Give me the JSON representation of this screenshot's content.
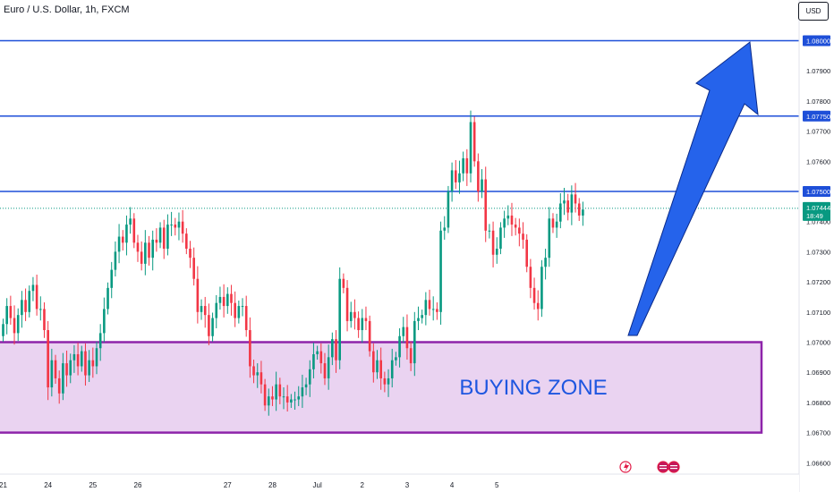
{
  "header": {
    "title": "Euro / U.S. Dollar, 1h, FXCM"
  },
  "currency_button": "USD",
  "zone_label": "BUYING ZONE",
  "colors": {
    "up": "#089981",
    "down": "#f23645",
    "level": "#1e4fd8",
    "zone_fill": "#ead3f1",
    "zone_border": "#8e24aa",
    "arrow": "#2563eb",
    "last_price": "#089981",
    "axis_text": "#131722"
  },
  "icons": [
    "lightning-icon",
    "us-flag-icon",
    "us-flag-icon"
  ],
  "chart_data": {
    "type": "candlestick",
    "title": "Euro / U.S. Dollar, 1h, FXCM",
    "x_tick_labels": [
      "21",
      "24",
      "25",
      "26",
      "27",
      "28",
      "Jul",
      "2",
      "3",
      "4",
      "5"
    ],
    "y_tick_labels": [
      "1.06600",
      "1.06700",
      "1.06800",
      "1.06900",
      "1.07000",
      "1.07100",
      "1.07200",
      "1.07300",
      "1.07400",
      "1.07500",
      "1.07600",
      "1.07700",
      "1.07800",
      "1.07900",
      "1.08000"
    ],
    "ylim": [
      1.0657,
      1.0812
    ],
    "levels": [
      {
        "label": "1.08000",
        "price": 1.08
      },
      {
        "label": "1.07750",
        "price": 1.0775
      },
      {
        "label": "1.07500",
        "price": 1.075
      }
    ],
    "last_price": {
      "label": "1.07444",
      "price": 1.07444,
      "countdown": "18:49"
    },
    "zone": {
      "label": "BUYING ZONE",
      "from_price": 1.067,
      "to_price": 1.07
    },
    "closes": [
      1.0706,
      1.0712,
      1.0708,
      1.0703,
      1.0709,
      1.0714,
      1.071,
      1.0717,
      1.0719,
      1.0711,
      1.0711,
      1.0704,
      1.0685,
      1.0694,
      1.0688,
      1.0683,
      1.0693,
      1.0689,
      1.0694,
      1.0696,
      1.0692,
      1.0697,
      1.0689,
      1.0694,
      1.0692,
      1.0698,
      1.0703,
      1.0711,
      1.0718,
      1.0724,
      1.073,
      1.0735,
      1.0733,
      1.0739,
      1.0741,
      1.0733,
      1.073,
      1.0726,
      1.0733,
      1.0728,
      1.0734,
      1.0733,
      1.0738,
      1.0731,
      1.0739,
      1.0739,
      1.0738,
      1.074,
      1.0736,
      1.0731,
      1.0728,
      1.0721,
      1.071,
      1.0712,
      1.0709,
      1.0702,
      1.0708,
      1.0713,
      1.0715,
      1.0712,
      1.0716,
      1.0713,
      1.0708,
      1.0712,
      1.0712,
      1.0704,
      1.0692,
      1.0689,
      1.069,
      1.0686,
      1.0679,
      1.0682,
      1.0681,
      1.0686,
      1.0682,
      1.0682,
      1.068,
      1.0681,
      1.0681,
      1.0682,
      1.0685,
      1.0686,
      1.0691,
      1.0696,
      1.0697,
      1.0693,
      1.0688,
      1.0695,
      1.0701,
      1.0694,
      1.0721,
      1.0718,
      1.0707,
      1.071,
      1.0708,
      1.0704,
      1.0708,
      1.0707,
      1.0697,
      1.069,
      1.0694,
      1.0688,
      1.0686,
      1.0688,
      1.0694,
      1.0695,
      1.0702,
      1.0705,
      1.0698,
      1.0693,
      1.0707,
      1.0708,
      1.0709,
      1.0714,
      1.0711,
      1.0711,
      1.071,
      1.0737,
      1.0738,
      1.075,
      1.0757,
      1.0753,
      1.0756,
      1.0761,
      1.0756,
      1.0773,
      1.076,
      1.075,
      1.0754,
      1.0737,
      1.0737,
      1.0729,
      1.0731,
      1.0738,
      1.0741,
      1.0742,
      1.0739,
      1.0738,
      1.0736,
      1.0734,
      1.0725,
      1.0718,
      1.0713,
      1.0711,
      1.0725,
      1.0728,
      1.0741,
      1.0738,
      1.074,
      1.0746,
      1.0747,
      1.0743,
      1.0749,
      1.0746,
      1.0742,
      1.0744
    ],
    "date_starts": [
      0,
      12,
      24,
      36,
      60,
      72,
      84,
      96,
      108,
      120,
      132
    ],
    "grid": false
  }
}
